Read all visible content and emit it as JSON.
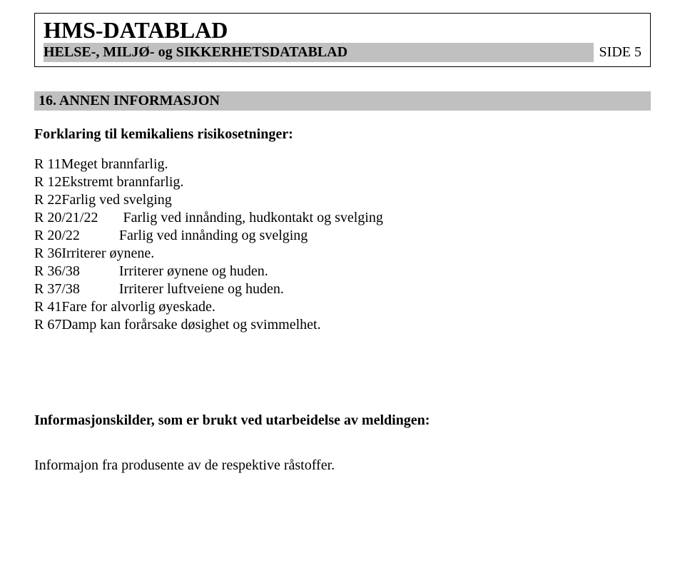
{
  "header": {
    "title": "HMS-DATABLAD",
    "subtitle": "HELSE-, MILJØ- og SIKKERHETSDATABLAD",
    "page_label": "SIDE 5"
  },
  "section": {
    "heading": "16.    ANNEN INFORMASJON",
    "intro": "Forklaring til kemikaliens risikosetninger:",
    "r_lines": [
      "R 11Meget brannfarlig.",
      "R 12Ekstremt brannfarlig.",
      "R 22Farlig ved svelging",
      "R 20/21/22       Farlig ved innånding, hudkontakt og svelging",
      "R 20/22           Farlig ved innånding og svelging",
      "R 36Irriterer øynene.",
      "R 36/38           Irriterer øynene og huden.",
      "R 37/38           Irriterer luftveiene og huden.",
      "R 41Fare for alvorlig øyeskade.",
      "R 67Damp kan forårsake døsighet og svimmelhet."
    ],
    "sources_heading": "Informasjonskilder, som er brukt ved utarbeidelse av meldingen:",
    "sources_body": "Informajon fra produsente av de respektive råstoffer."
  },
  "colors": {
    "bg": "#ffffff",
    "text": "#000000",
    "band": "#c0c0c0",
    "border": "#000000"
  },
  "typography": {
    "title_size_pt": 32,
    "subtitle_size_pt": 20,
    "body_size_pt": 20,
    "family": "Times New Roman"
  }
}
